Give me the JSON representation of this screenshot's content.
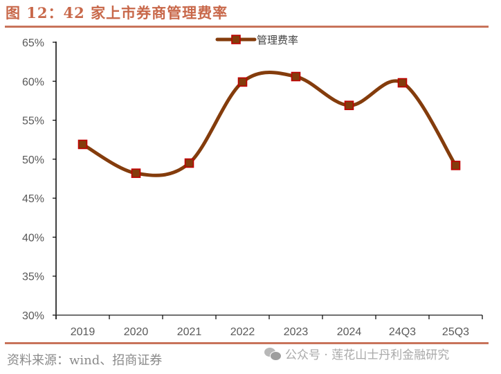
{
  "header": {
    "title": "图 12：42 家上市券商管理费率"
  },
  "footer": {
    "source": "资料来源：wind、招商证券",
    "watermark": "公众号 · 莲花山士丹利金融研究",
    "watermark_icon": "wechat-icon"
  },
  "colors": {
    "accent": "#c8735a",
    "line": "#843c0c",
    "marker_fill": "#843c0c",
    "marker_edge": "#c00000",
    "axis": "#000000",
    "tick_text": "#595959"
  },
  "chart_data": {
    "type": "line",
    "title": "42 家上市券商管理费率",
    "xlabel": "",
    "ylabel": "",
    "categories": [
      "2019",
      "2020",
      "2021",
      "2022",
      "2023",
      "2024",
      "24Q3",
      "25Q3"
    ],
    "series": [
      {
        "name": "管理费率",
        "values": [
          51.9,
          48.2,
          49.5,
          59.9,
          60.6,
          56.9,
          59.8,
          49.2
        ],
        "unit": "%",
        "smooth": true,
        "marker": "square"
      }
    ],
    "ylim": [
      30,
      65
    ],
    "yticks": [
      "30%",
      "35%",
      "40%",
      "45%",
      "50%",
      "55%",
      "60%",
      "65%"
    ],
    "grid": false,
    "legend_position": "top-center"
  }
}
